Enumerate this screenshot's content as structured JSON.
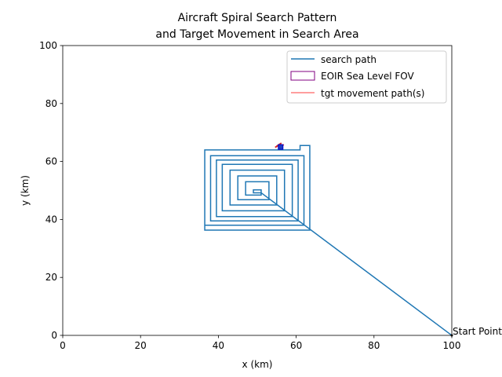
{
  "chart_data": {
    "type": "line",
    "title_line1": "Aircraft Spiral Search Pattern",
    "title_line2": "and Target Movement in Search Area",
    "xlabel": "x (km)",
    "ylabel": "y (km)",
    "xlim": [
      0,
      100
    ],
    "ylim": [
      0,
      100
    ],
    "xticks": [
      0,
      20,
      40,
      60,
      80,
      100
    ],
    "yticks": [
      0,
      20,
      40,
      60,
      80,
      100
    ],
    "grid": false,
    "legend_position": "top-right",
    "series": [
      {
        "name": "search path",
        "color": "#1f77b4",
        "points": [
          [
            100,
            0
          ],
          [
            51,
            49.2
          ],
          [
            49,
            49.2
          ],
          [
            49,
            50.2
          ],
          [
            51,
            50.2
          ],
          [
            51,
            48.4
          ],
          [
            47,
            48.4
          ],
          [
            47,
            53
          ],
          [
            53,
            53
          ],
          [
            53,
            46.8
          ],
          [
            45,
            46.8
          ],
          [
            45,
            55
          ],
          [
            55,
            55
          ],
          [
            55,
            45
          ],
          [
            43,
            45
          ],
          [
            43,
            57
          ],
          [
            57,
            57
          ],
          [
            57,
            43
          ],
          [
            41,
            43
          ],
          [
            41,
            59
          ],
          [
            59,
            59
          ],
          [
            59,
            41
          ],
          [
            39.5,
            41
          ],
          [
            39.5,
            60.5
          ],
          [
            60.5,
            60.5
          ],
          [
            60.5,
            39.5
          ],
          [
            38,
            39.5
          ],
          [
            38,
            62
          ],
          [
            62,
            62
          ],
          [
            62,
            38
          ],
          [
            36.5,
            38
          ],
          [
            36.5,
            64
          ],
          [
            61,
            64
          ],
          [
            61,
            65.5
          ],
          [
            63.5,
            65.5
          ],
          [
            63.5,
            36.3
          ],
          [
            36.5,
            36.3
          ],
          [
            36.5,
            64
          ]
        ]
      },
      {
        "name": "EOIR Sea Level FOV",
        "color": "#800080"
      },
      {
        "name": "tgt movement path(s)",
        "color": "#ff7f7f"
      }
    ],
    "target_positions": [
      [
        55.2,
        65.4
      ],
      [
        56.2,
        65.3
      ],
      [
        55.6,
        65.8
      ]
    ],
    "fov_marker": [
      56,
      65
    ],
    "annotations": [
      {
        "text": "Start Point",
        "x": 100,
        "y": 0
      }
    ]
  }
}
